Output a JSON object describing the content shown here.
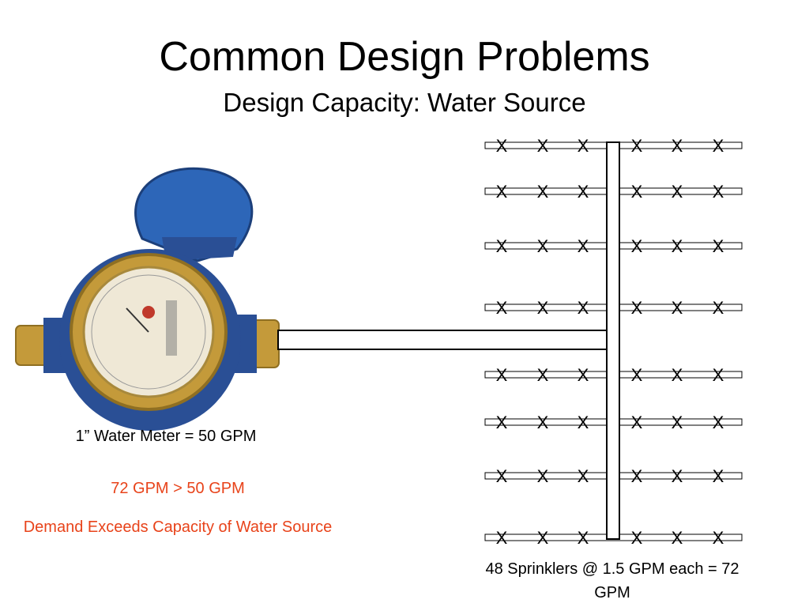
{
  "slide": {
    "title": "Common Design Problems",
    "subtitle": "Design Capacity: Water Source"
  },
  "meter": {
    "label": "1” Water Meter = 50 GPM"
  },
  "analysis": {
    "comparison": "72 GPM > 50 GPM",
    "conclusion": "Demand Exceeds Capacity of Water Source"
  },
  "sprinklers": {
    "label": "48 Sprinklers @ 1.5 GPM each = 72 GPM",
    "marker": "X",
    "branch_lines": 8,
    "heads_per_side": 3
  },
  "colors": {
    "warning_text": "#e8431a",
    "meter_body": "#2a4f95",
    "meter_lid": "#2d66b8",
    "meter_brass": "#c49a3a"
  }
}
